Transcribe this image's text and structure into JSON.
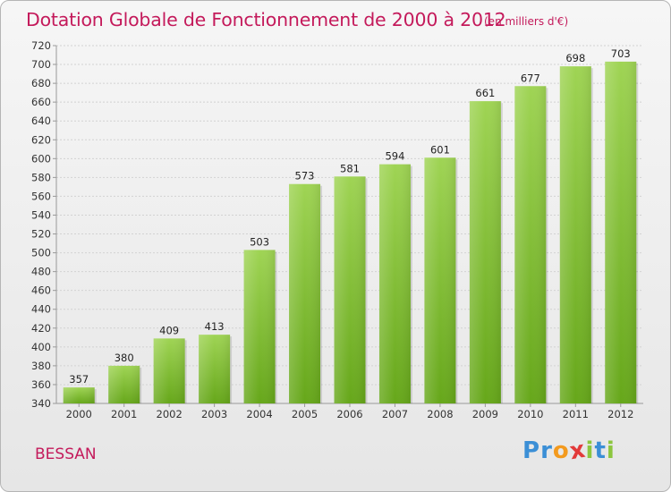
{
  "chart_data": {
    "type": "bar",
    "title": "Dotation Globale de Fonctionnement de 2000 à 2012",
    "subtitle": "(en milliers d'€)",
    "categories": [
      "2000",
      "2001",
      "2002",
      "2003",
      "2004",
      "2005",
      "2006",
      "2007",
      "2008",
      "2009",
      "2010",
      "2011",
      "2012"
    ],
    "values": [
      357,
      380,
      409,
      413,
      503,
      573,
      581,
      594,
      601,
      661,
      677,
      698,
      703
    ],
    "ylim": [
      340,
      720
    ],
    "yticks": [
      340,
      360,
      380,
      400,
      420,
      440,
      460,
      480,
      500,
      520,
      540,
      560,
      580,
      600,
      620,
      640,
      660,
      680,
      700,
      720
    ],
    "xlabel": "",
    "ylabel": "",
    "grid": true,
    "bar_color": "#8cc63f"
  },
  "footer": {
    "commune": "BESSAN",
    "logo_letters": [
      "P",
      "r",
      "o",
      "x",
      "i",
      "t",
      "i"
    ],
    "logo_colors": [
      "#3b8fd6",
      "#3b8fd6",
      "#f39a1e",
      "#e23a3a",
      "#8cc63f",
      "#3b8fd6",
      "#8cc63f"
    ]
  }
}
